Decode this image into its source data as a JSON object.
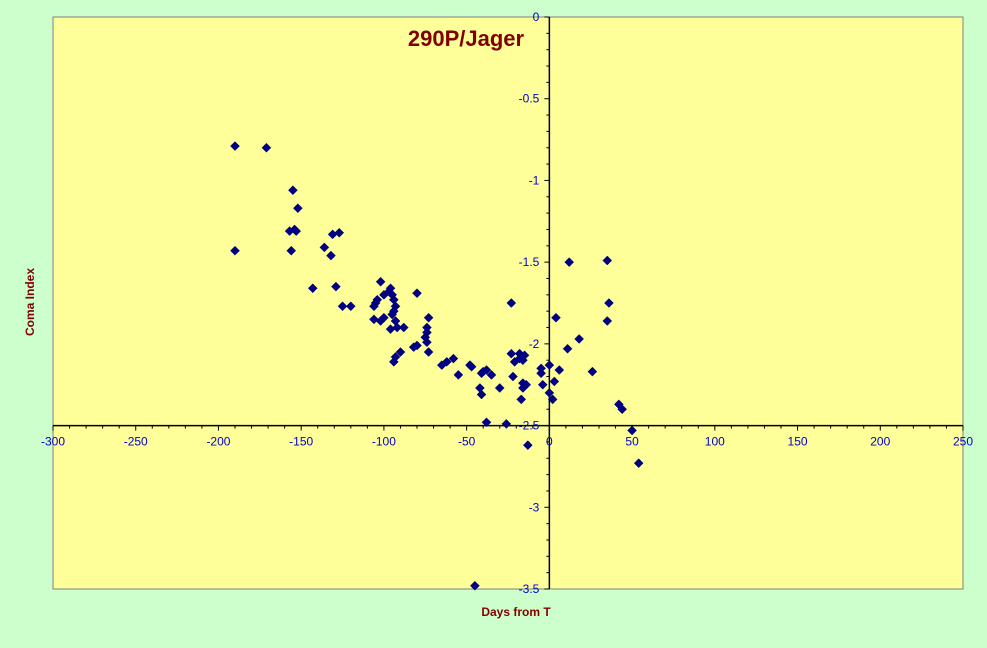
{
  "chart_data": {
    "type": "scatter",
    "title": "290P/Jager",
    "xlabel": "Days from T",
    "ylabel": "Coma Index",
    "xlim": [
      -300,
      250
    ],
    "ylim": [
      -3.5,
      0
    ],
    "x_ticks": [
      "-300",
      "-250",
      "-200",
      "-150",
      "-100",
      "-50",
      "0",
      "50",
      "100",
      "150",
      "200",
      "250"
    ],
    "y_ticks": [
      "0",
      "-0.5",
      "-1",
      "-1.5",
      "-2",
      "-2.5",
      "-3",
      "-3.5"
    ],
    "grid": false,
    "legend": "none",
    "colors": {
      "background": "#ccffcc",
      "plot_area": "#ffff99",
      "marker": "#000080",
      "title": "#800000",
      "tick_labels": "#0000cc"
    },
    "points": [
      [
        -190,
        -0.79
      ],
      [
        -171,
        -0.8
      ],
      [
        -190,
        -1.43
      ],
      [
        -155,
        -1.06
      ],
      [
        -152,
        -1.17
      ],
      [
        -157,
        -1.31
      ],
      [
        -154,
        -1.3
      ],
      [
        -153,
        -1.31
      ],
      [
        -156,
        -1.43
      ],
      [
        -136,
        -1.41
      ],
      [
        -132,
        -1.46
      ],
      [
        -131,
        -1.33
      ],
      [
        -127,
        -1.32
      ],
      [
        -143,
        -1.66
      ],
      [
        -129,
        -1.65
      ],
      [
        -125,
        -1.77
      ],
      [
        -120,
        -1.77
      ],
      [
        -102,
        -1.62
      ],
      [
        -97,
        -1.68
      ],
      [
        -96,
        -1.66
      ],
      [
        -95,
        -1.7
      ],
      [
        -94,
        -1.73
      ],
      [
        -100,
        -1.7
      ],
      [
        -104,
        -1.73
      ],
      [
        -105,
        -1.75
      ],
      [
        -106,
        -1.77
      ],
      [
        -93,
        -1.77
      ],
      [
        -94,
        -1.8
      ],
      [
        -95,
        -1.82
      ],
      [
        -100,
        -1.84
      ],
      [
        -102,
        -1.86
      ],
      [
        -106,
        -1.85
      ],
      [
        -93,
        -1.86
      ],
      [
        -92,
        -1.9
      ],
      [
        -88,
        -1.9
      ],
      [
        -96,
        -1.91
      ],
      [
        -80,
        -1.69
      ],
      [
        -73,
        -1.84
      ],
      [
        -74,
        -1.9
      ],
      [
        -74,
        -1.93
      ],
      [
        -75,
        -1.96
      ],
      [
        -74,
        -1.99
      ],
      [
        -80,
        -2.01
      ],
      [
        -82,
        -2.02
      ],
      [
        -90,
        -2.05
      ],
      [
        -73,
        -2.05
      ],
      [
        -93,
        -2.08
      ],
      [
        -94,
        -2.11
      ],
      [
        -65,
        -2.13
      ],
      [
        -62,
        -2.11
      ],
      [
        -58,
        -2.09
      ],
      [
        -55,
        -2.19
      ],
      [
        -48,
        -2.13
      ],
      [
        -47,
        -2.14
      ],
      [
        -40,
        -2.17
      ],
      [
        -38,
        -2.16
      ],
      [
        -35,
        -2.19
      ],
      [
        -41,
        -2.18
      ],
      [
        -42,
        -2.27
      ],
      [
        -41,
        -2.31
      ],
      [
        -30,
        -2.27
      ],
      [
        -38,
        -2.48
      ],
      [
        -26,
        -2.49
      ],
      [
        -23,
        -1.75
      ],
      [
        -23,
        -2.06
      ],
      [
        -21,
        -2.11
      ],
      [
        -18,
        -2.09
      ],
      [
        -18,
        -2.06
      ],
      [
        -15,
        -2.07
      ],
      [
        -16,
        -2.1
      ],
      [
        -22,
        -2.2
      ],
      [
        -16,
        -2.24
      ],
      [
        -16,
        -2.27
      ],
      [
        -17,
        -2.34
      ],
      [
        -14,
        -2.25
      ],
      [
        -13,
        -2.62
      ],
      [
        -5,
        -2.18
      ],
      [
        -5,
        -2.15
      ],
      [
        -4,
        -2.25
      ],
      [
        0,
        -2.13
      ],
      [
        0,
        -2.3
      ],
      [
        2,
        -2.34
      ],
      [
        3,
        -2.23
      ],
      [
        4,
        -1.84
      ],
      [
        6,
        -2.16
      ],
      [
        11,
        -2.03
      ],
      [
        12,
        -1.5
      ],
      [
        18,
        -1.97
      ],
      [
        26,
        -2.17
      ],
      [
        35,
        -1.49
      ],
      [
        36,
        -1.75
      ],
      [
        35,
        -1.86
      ],
      [
        42,
        -2.37
      ],
      [
        44,
        -2.4
      ],
      [
        50,
        -2.53
      ],
      [
        54,
        -2.73
      ],
      [
        -45,
        -3.48
      ]
    ]
  }
}
